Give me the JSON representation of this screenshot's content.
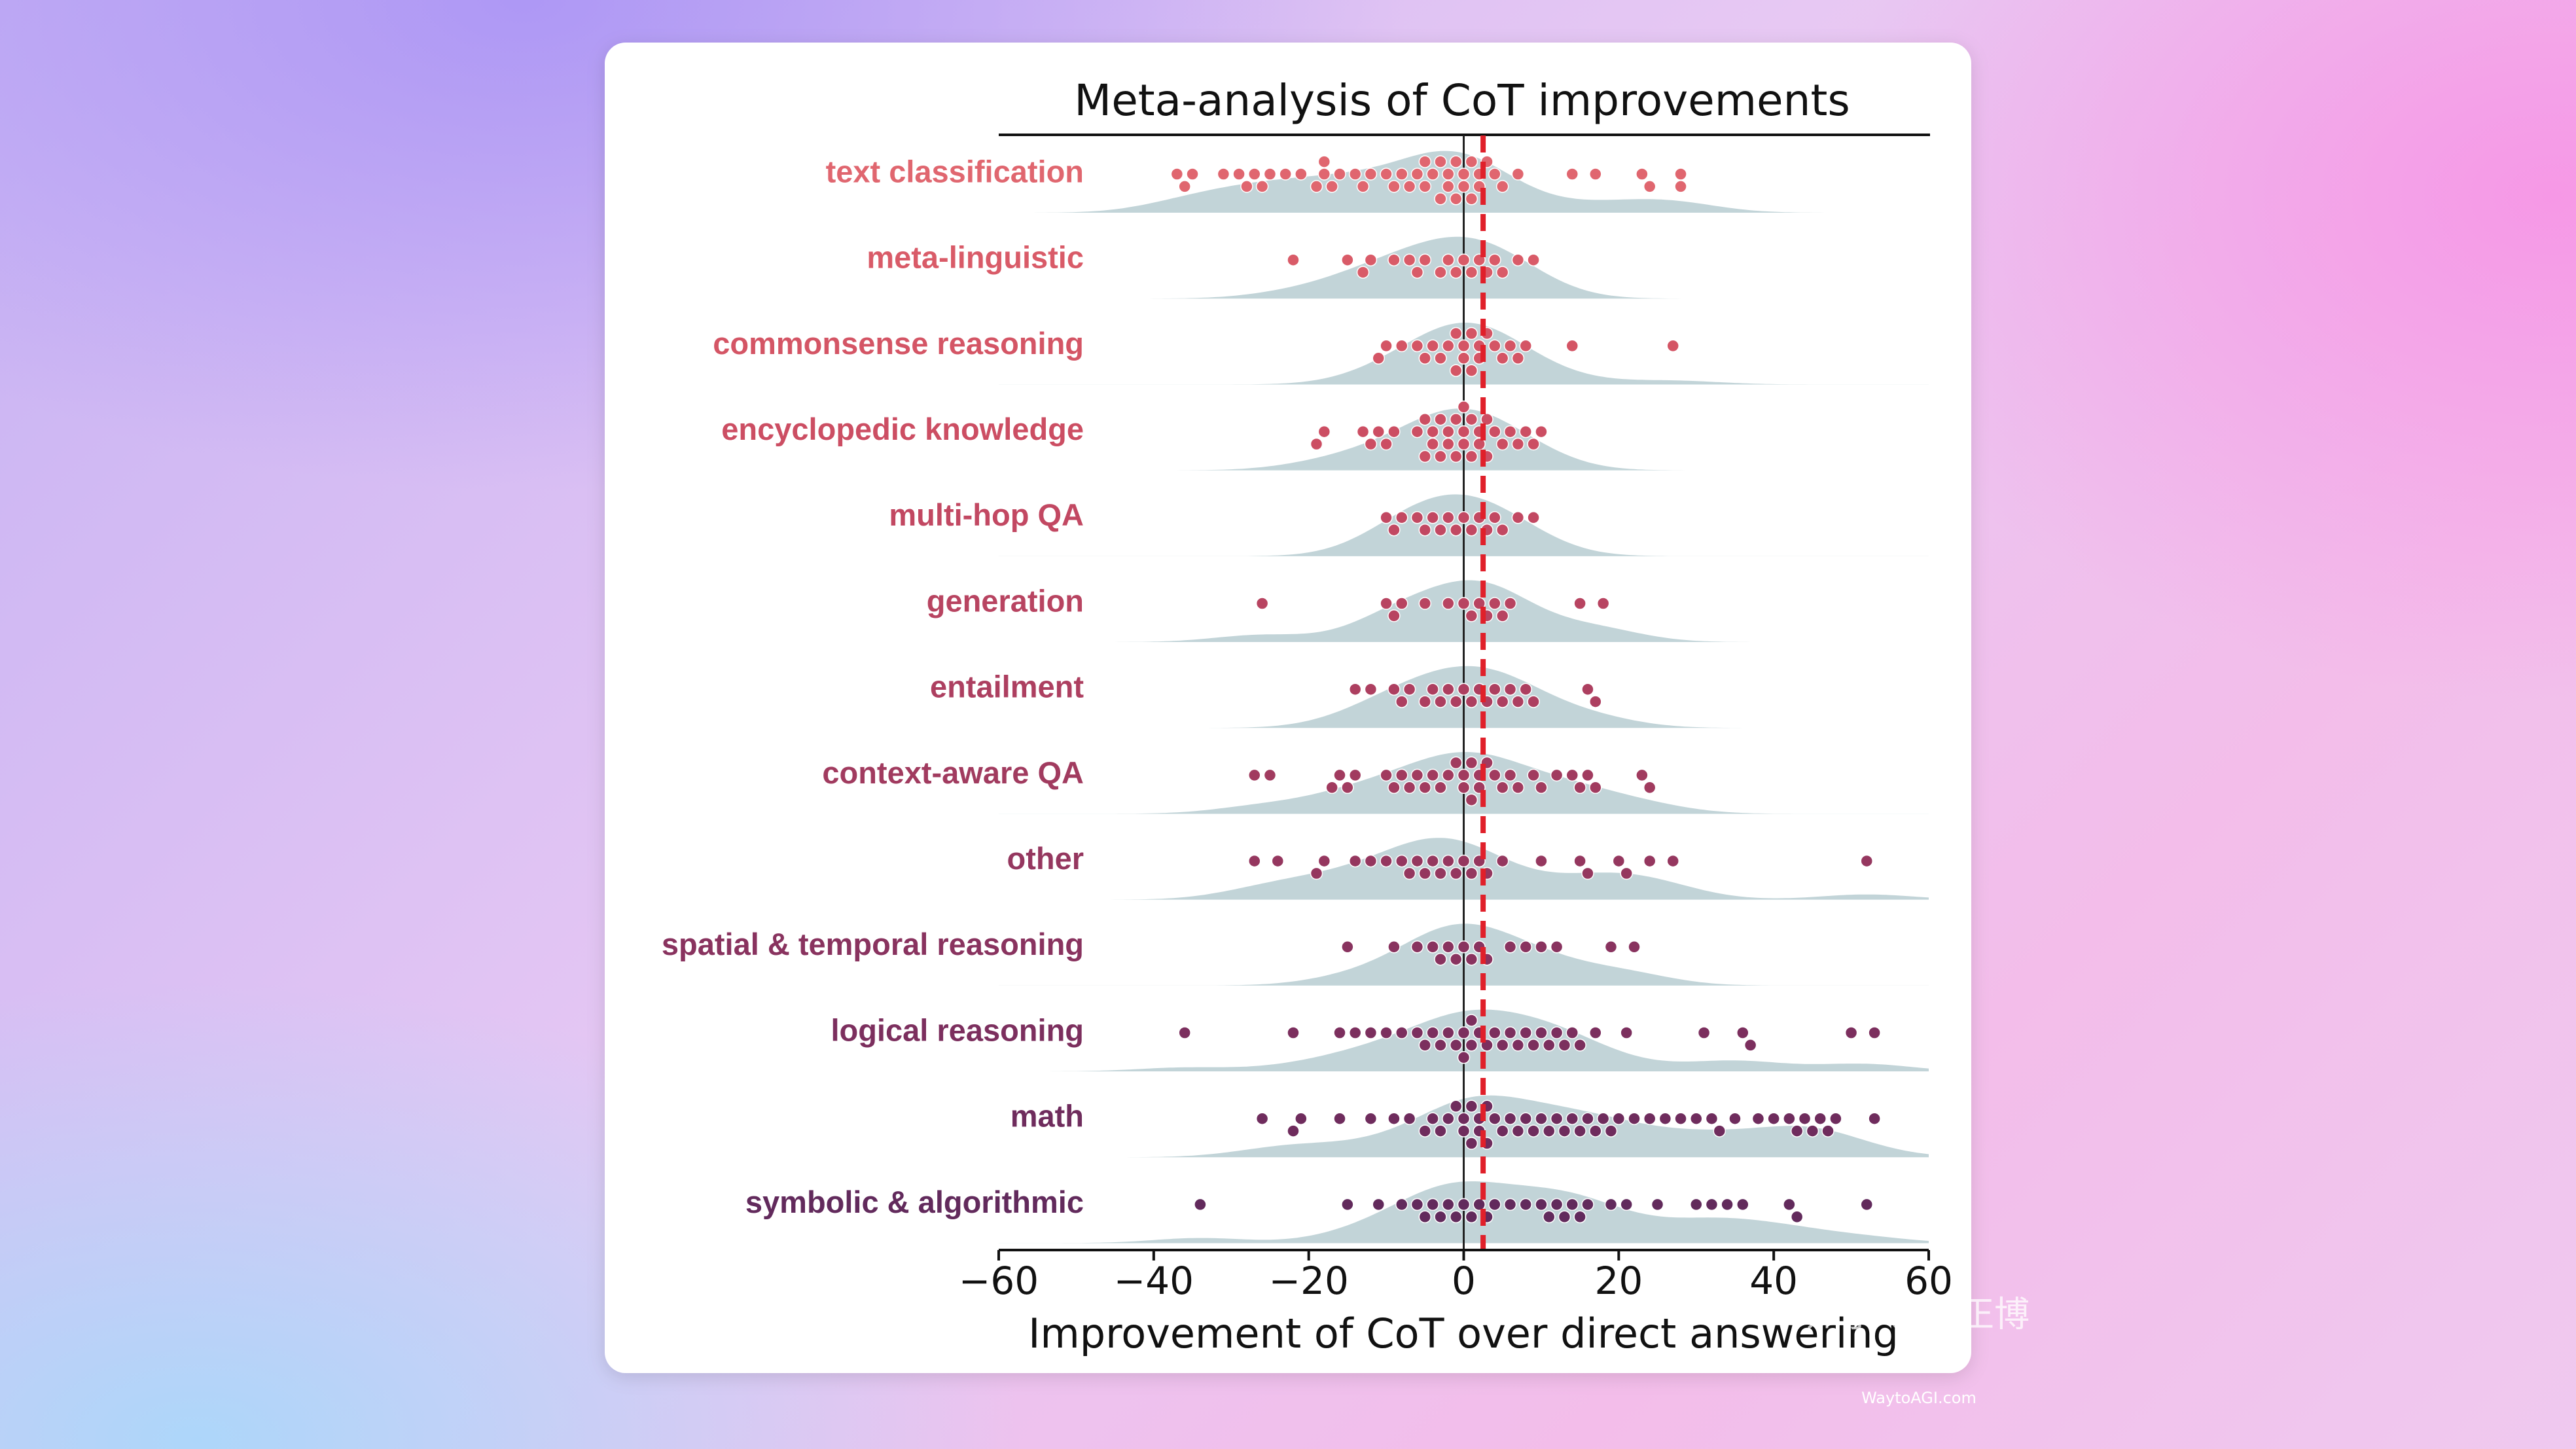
{
  "chart_data": {
    "type": "swarm",
    "title": "Meta-analysis of CoT improvements",
    "x_label": "Improvement of CoT over direct answering",
    "categories": [
      "text classification",
      "meta-linguistic",
      "commonsense reasoning",
      "encyclopedic knowledge",
      "multi-hop QA",
      "generation",
      "entailment",
      "context-aware QA",
      "other",
      "spatial & temporal reasoning",
      "logical reasoning",
      "math",
      "symbolic & algorithmic"
    ],
    "colors": [
      "#e0666f",
      "#d95b68",
      "#d45565",
      "#cc4e63",
      "#c24862",
      "#b84461",
      "#ad3f60",
      "#a13b5f",
      "#95375f",
      "#89335f",
      "#7c2f5e",
      "#6f2c5d",
      "#622a5c"
    ],
    "values": [
      [
        -37,
        -36,
        -35,
        -31,
        -29,
        -28,
        -27,
        -26,
        -25,
        -23,
        -21,
        -19,
        -18,
        -18,
        -17,
        -16,
        -14,
        -13,
        -12,
        -10,
        -9,
        -8,
        -7,
        -6,
        -5,
        -5,
        -4,
        -3,
        -3,
        -2,
        -2,
        -1,
        -1,
        0,
        0,
        1,
        1,
        2,
        2,
        3,
        4,
        5,
        7,
        14,
        17,
        23,
        24,
        28,
        28
      ],
      [
        -22,
        -15,
        -13,
        -12,
        -9,
        -7,
        -6,
        -5,
        -3,
        -2,
        -1,
        0,
        1,
        2,
        3,
        4,
        5,
        7,
        9
      ],
      [
        -11,
        -10,
        -8,
        -6,
        -5,
        -4,
        -3,
        -2,
        -1,
        -1,
        0,
        0,
        1,
        1,
        2,
        2,
        3,
        4,
        5,
        6,
        7,
        8,
        14,
        27
      ],
      [
        -19,
        -18,
        -13,
        -12,
        -11,
        -10,
        -9,
        -6,
        -5,
        -5,
        -4,
        -4,
        -3,
        -3,
        -2,
        -2,
        -1,
        -1,
        0,
        0,
        0,
        1,
        1,
        2,
        2,
        3,
        3,
        4,
        5,
        6,
        7,
        8,
        9,
        10
      ],
      [
        -10,
        -9,
        -8,
        -6,
        -5,
        -4,
        -3,
        -2,
        -1,
        0,
        1,
        2,
        3,
        4,
        5,
        7,
        9
      ],
      [
        -26,
        -10,
        -9,
        -8,
        -5,
        -2,
        0,
        1,
        2,
        3,
        4,
        5,
        6,
        15,
        18
      ],
      [
        -14,
        -12,
        -9,
        -8,
        -7,
        -5,
        -4,
        -3,
        -2,
        -1,
        0,
        1,
        2,
        3,
        4,
        5,
        6,
        7,
        8,
        9,
        16,
        17
      ],
      [
        -27,
        -25,
        -17,
        -16,
        -15,
        -14,
        -10,
        -9,
        -8,
        -7,
        -6,
        -5,
        -4,
        -3,
        -2,
        -1,
        0,
        0,
        1,
        1,
        2,
        2,
        3,
        4,
        5,
        6,
        7,
        9,
        10,
        12,
        14,
        15,
        16,
        17,
        23,
        24
      ],
      [
        -27,
        -24,
        -19,
        -18,
        -14,
        -12,
        -10,
        -8,
        -7,
        -6,
        -5,
        -4,
        -3,
        -2,
        -1,
        0,
        1,
        2,
        3,
        5,
        10,
        15,
        16,
        20,
        21,
        24,
        27,
        52
      ],
      [
        -15,
        -9,
        -6,
        -4,
        -3,
        -2,
        -1,
        0,
        1,
        2,
        3,
        6,
        8,
        10,
        12,
        19,
        22
      ],
      [
        -36,
        -22,
        -16,
        -14,
        -12,
        -10,
        -8,
        -6,
        -5,
        -4,
        -3,
        -2,
        -1,
        0,
        0,
        1,
        1,
        2,
        3,
        4,
        5,
        6,
        7,
        8,
        9,
        10,
        11,
        12,
        13,
        14,
        15,
        17,
        21,
        31,
        36,
        37,
        50,
        53
      ],
      [
        -26,
        -22,
        -21,
        -16,
        -12,
        -9,
        -7,
        -5,
        -4,
        -3,
        -2,
        -1,
        0,
        0,
        1,
        1,
        2,
        2,
        3,
        3,
        4,
        5,
        6,
        7,
        8,
        9,
        10,
        11,
        12,
        13,
        14,
        15,
        16,
        17,
        18,
        19,
        20,
        22,
        24,
        26,
        28,
        30,
        32,
        33,
        35,
        38,
        40,
        42,
        43,
        44,
        45,
        46,
        47,
        48,
        53
      ],
      [
        -34,
        -15,
        -11,
        -8,
        -6,
        -5,
        -4,
        -3,
        -2,
        -1,
        0,
        1,
        2,
        3,
        4,
        6,
        8,
        10,
        11,
        12,
        13,
        14,
        15,
        16,
        19,
        21,
        25,
        30,
        32,
        34,
        36,
        42,
        43,
        52
      ]
    ],
    "density_color": "#b7cdd1",
    "mean_line": {
      "value": 2.5,
      "color": "#e0202a"
    },
    "xlim": [
      -60,
      60
    ],
    "xticks": [
      {
        "value": -60,
        "label": "−60"
      },
      {
        "value": -40,
        "label": "−40"
      },
      {
        "value": -20,
        "label": "−20"
      },
      0,
      20,
      40,
      60
    ]
  },
  "watermarks": [
    "知乎 @任正博",
    "WaytoAGI.com"
  ]
}
